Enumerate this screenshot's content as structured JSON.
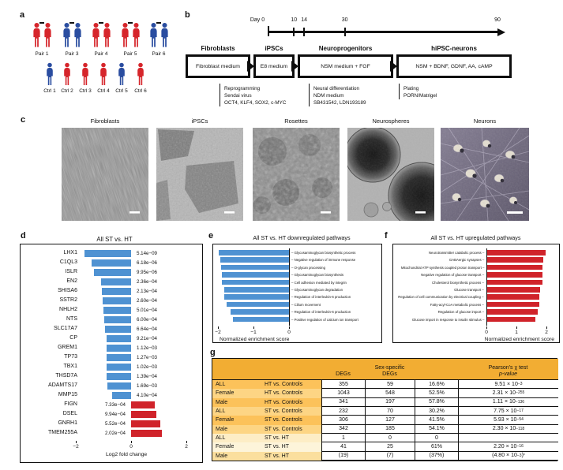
{
  "colors": {
    "bar_blue": "#4f92d2",
    "bar_red": "#d0232a",
    "person_red": "#d6252b",
    "person_blue": "#2a4da0",
    "table_header": "#f2ad33"
  },
  "panel_a": {
    "label": "a",
    "pairs": [
      {
        "label": "Pair 1",
        "members": [
          "red",
          "red"
        ]
      },
      {
        "label": "Pair 3",
        "members": [
          "blue",
          "blue"
        ]
      },
      {
        "label": "Pair 4",
        "members": [
          "red",
          "red"
        ]
      },
      {
        "label": "Pair 5",
        "members": [
          "red",
          "red"
        ]
      },
      {
        "label": "Pair 6",
        "members": [
          "blue",
          "blue"
        ]
      }
    ],
    "controls": [
      {
        "label": "Ctrl 1",
        "color": "blue"
      },
      {
        "label": "Ctrl 2",
        "color": "red"
      },
      {
        "label": "Ctrl 3",
        "color": "red"
      },
      {
        "label": "Ctrl 4",
        "color": "red"
      },
      {
        "label": "Ctrl 5",
        "color": "blue"
      },
      {
        "label": "Ctrl 6",
        "color": "red"
      }
    ]
  },
  "panel_b": {
    "label": "b",
    "timeline": {
      "ticks": [
        {
          "label": "Day 0",
          "day": 0
        },
        {
          "label": "10",
          "day": 10
        },
        {
          "label": "14",
          "day": 14
        },
        {
          "label": "30",
          "day": 30
        },
        {
          "label": "90",
          "day": 90
        }
      ]
    },
    "stages": [
      {
        "title": "Fibroblasts",
        "medium": "Fibroblast medium"
      },
      {
        "title": "iPSCs",
        "medium": "E8 medium"
      },
      {
        "title": "Neuroprogenitors",
        "medium": "NSM medium + FGF"
      },
      {
        "title": "hiPSC-neurons",
        "medium": "NSM + BDNF, GDNF, AA, cAMP"
      }
    ],
    "annotations": [
      {
        "lines": [
          "Reprogramming",
          "Sendai virus",
          "OCT4, KLF4, SOX2, c-MYC"
        ]
      },
      {
        "lines": [
          "Neural differentiation",
          "NDM medium",
          "SB431542, LDN193189"
        ]
      },
      {
        "lines": [
          "Plating",
          "PORN/Matrigel"
        ]
      }
    ]
  },
  "panel_c": {
    "label": "c",
    "images": [
      {
        "title": "Fibroblasts"
      },
      {
        "title": "iPSCs"
      },
      {
        "title": "Rosettes"
      },
      {
        "title": "Neurospheres"
      },
      {
        "title": "Neurons"
      }
    ]
  },
  "chart_data": [
    {
      "id": "d",
      "type": "bar",
      "orientation": "horizontal",
      "title": "All ST vs. HT",
      "xlabel": "Log2 fold change",
      "xlim": [
        -2,
        2
      ],
      "xticks": [
        -2,
        0,
        2
      ],
      "items": [
        {
          "gene": "LHX1",
          "log2fc": -1.7,
          "p": "5.14e−09"
        },
        {
          "gene": "C1QL3",
          "log2fc": -1.43,
          "p": "6.18e−06"
        },
        {
          "gene": "ISLR",
          "log2fc": -1.33,
          "p": "9.95e−06"
        },
        {
          "gene": "EN2",
          "log2fc": -1.1,
          "p": "2.36e−04"
        },
        {
          "gene": "SHISA6",
          "log2fc": -1.05,
          "p": "2.13e−04"
        },
        {
          "gene": "SSTR2",
          "log2fc": -1.02,
          "p": "2.60e−04"
        },
        {
          "gene": "NHLH2",
          "log2fc": -1.0,
          "p": "5.01e−04"
        },
        {
          "gene": "NTS",
          "log2fc": -0.98,
          "p": "6.00e−04"
        },
        {
          "gene": "SLC17A7",
          "log2fc": -0.93,
          "p": "6.64e−04"
        },
        {
          "gene": "CP",
          "log2fc": -0.9,
          "p": "9.21e−04"
        },
        {
          "gene": "GREM1",
          "log2fc": -0.9,
          "p": "1.12e−03"
        },
        {
          "gene": "TP73",
          "log2fc": -0.9,
          "p": "1.27e−03"
        },
        {
          "gene": "TBX1",
          "log2fc": -0.88,
          "p": "1.02e−03"
        },
        {
          "gene": "THSD7A",
          "log2fc": -0.88,
          "p": "1.39e−04"
        },
        {
          "gene": "ADAMTS17",
          "log2fc": -0.85,
          "p": "1.69e−03"
        },
        {
          "gene": "MMP15",
          "log2fc": -0.7,
          "p": "4.10e−04"
        },
        {
          "gene": "FIGN",
          "log2fc": 0.85,
          "p": "7.33e−04"
        },
        {
          "gene": "DSEL",
          "log2fc": 0.9,
          "p": "9.94e−04"
        },
        {
          "gene": "GNRH1",
          "log2fc": 1.05,
          "p": "5.52e−04"
        },
        {
          "gene": "TMEM255A",
          "log2fc": 1.1,
          "p": "2.02e−04"
        }
      ]
    },
    {
      "id": "e",
      "type": "bar",
      "orientation": "horizontal",
      "title": "All ST vs. HT downregulated pathways",
      "xlabel": "Normalized enrichment score",
      "xlim": [
        -2.1,
        0
      ],
      "xticks": [
        -2,
        -1,
        0
      ],
      "categories": [
        "Glycosaminoglycan biosynthetic process",
        "Negative regulation of immune response",
        "O-glycan processing",
        "Glycosaminoglycan biosynthesis",
        "Cell adhesion mediated by integrin",
        "Glycosaminoglycan degradation",
        "Regulation of interleukin-6 production",
        "Cilium movement",
        "Regulation of interleukin-6 production",
        "Positive regulation of calcium ion transport"
      ],
      "values": [
        -1.98,
        -1.93,
        -1.92,
        -1.89,
        -1.88,
        -1.83,
        -1.82,
        -1.76,
        -1.65,
        -1.57
      ]
    },
    {
      "id": "f",
      "type": "bar",
      "orientation": "horizontal",
      "title": "All ST vs. HT upregulated pathways",
      "xlabel": "Normalized enrichment score",
      "xlim": [
        0,
        2.1
      ],
      "xticks": [
        0,
        1,
        2
      ],
      "categories": [
        "Neurotransmitter catabolic process",
        "GABAergic synapses",
        "Mitochondrial ATP synthesis coupled proton transport",
        "Negative regulation of glucose transport",
        "Cholesterol biosynthetic process",
        "Glucose transport",
        "Regulation of cell communication by electrical coupling",
        "Fatty-acyl-CoA metabolic process",
        "Regulation of glucose import",
        "Glucose import in response to insulin stimulus"
      ],
      "values": [
        1.97,
        1.89,
        1.87,
        1.87,
        1.86,
        1.79,
        1.77,
        1.76,
        1.72,
        1.64
      ]
    }
  ],
  "panel_g": {
    "label": "g",
    "header": {
      "degs": "DEGs",
      "ss1": "Sex-specific",
      "ss2": "DEGs",
      "p1": "Pearson's χ test",
      "p2": "p-value"
    },
    "rows": [
      {
        "group": "ALL",
        "comparison": "HT vs. Controls",
        "degs": "355",
        "ss": "59",
        "pct": "16.6%",
        "p": {
          "pre": "",
          "m": "9.51 × 10",
          "e": "−3",
          "post": "",
          "star": ""
        },
        "tint": "#fcc25a"
      },
      {
        "group": "Female",
        "comparison": "HT vs. Controls",
        "degs": "1043",
        "ss": "548",
        "pct": "52.5%",
        "p": {
          "pre": "",
          "m": "2.31 × 10",
          "e": "−255",
          "post": "",
          "star": ""
        },
        "tint": "#fdd584"
      },
      {
        "group": "Male",
        "comparison": "HT vs. Controls",
        "degs": "341",
        "ss": "197",
        "pct": "57.8%",
        "p": {
          "pre": "",
          "m": "1.11 × 10",
          "e": "−136",
          "post": "",
          "star": ""
        },
        "tint": "#fcc25a"
      },
      {
        "group": "ALL",
        "comparison": "ST vs. Controls",
        "degs": "232",
        "ss": "70",
        "pct": "30.2%",
        "p": {
          "pre": "",
          "m": "7.75 × 10",
          "e": "−17",
          "post": "",
          "star": ""
        },
        "tint": "#fdd584"
      },
      {
        "group": "Female",
        "comparison": "ST vs. Controls",
        "degs": "306",
        "ss": "127",
        "pct": "41.5%",
        "p": {
          "pre": "",
          "m": "5.93 × 10",
          "e": "−54",
          "post": "",
          "star": ""
        },
        "tint": "#fcc25a"
      },
      {
        "group": "Male",
        "comparison": "ST vs. Controls",
        "degs": "342",
        "ss": "185",
        "pct": "54.1%",
        "p": {
          "pre": "",
          "m": "2.30 × 10",
          "e": "−118",
          "post": "",
          "star": ""
        },
        "tint": "#fdd584"
      },
      {
        "group": "ALL",
        "comparison": "ST vs. HT",
        "degs": "1",
        "ss": "0",
        "pct": "0",
        "p": {
          "pre": "",
          "m": "",
          "e": "",
          "post": "",
          "star": ""
        },
        "tint": "#fdedc6"
      },
      {
        "group": "Female",
        "comparison": "ST vs. HT",
        "degs": "41",
        "ss": "25",
        "pct": "61%",
        "p": {
          "pre": "",
          "m": "2.20 × 10",
          "e": "−16",
          "post": "",
          "star": ""
        },
        "tint": "#fdf4da"
      },
      {
        "group": "Male",
        "comparison": "ST vs. HT",
        "degs": "(19)",
        "ss": "(7)",
        "pct": "(37%)",
        "p": {
          "pre": "(",
          "m": "4.80 × 10",
          "e": "−3",
          "post": ")",
          "star": "*"
        },
        "tint": "#fbdf9e"
      }
    ]
  }
}
